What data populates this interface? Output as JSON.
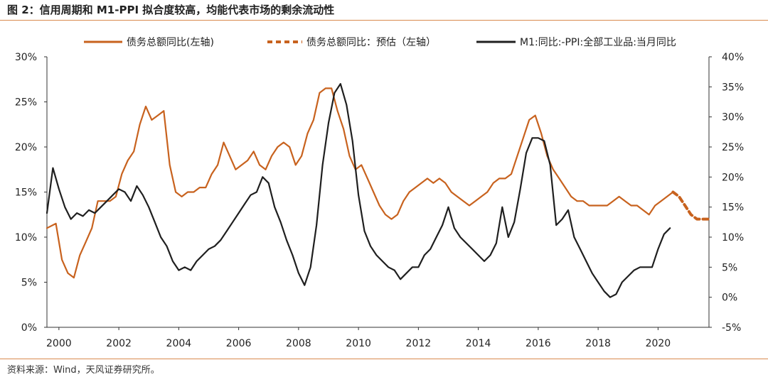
{
  "figure": {
    "title": "图 2：信用周期和 M1-PPI 拟合度较高，均能代表市场的剩余流动性",
    "source": "资料来源：Wind，天风证券研究所。"
  },
  "colors": {
    "debt": "#c8621e",
    "m1ppi": "#1f1f1f",
    "rule": "#d98a4e"
  },
  "chart_data": {
    "type": "line",
    "legend_position": "top",
    "grid": false,
    "x_ticks": [
      "2000",
      "2002",
      "2004",
      "2006",
      "2008",
      "2010",
      "2012",
      "2014",
      "2016",
      "2018",
      "2020"
    ],
    "xlim": [
      1999.6,
      2021.7
    ],
    "ylim_left": [
      0,
      30
    ],
    "ylim_right": [
      -5,
      40
    ],
    "y_ticks_left": [
      "0%",
      "5%",
      "10%",
      "15%",
      "20%",
      "25%",
      "30%"
    ],
    "y_ticks_right": [
      "-5%",
      "0%",
      "5%",
      "10%",
      "15%",
      "20%",
      "25%",
      "30%",
      "35%",
      "40%"
    ],
    "series": [
      {
        "name": "债务总额同比(左轴)",
        "axis": "left",
        "style": "solid",
        "x": [
          1999.6,
          1999.9,
          2000.1,
          2000.3,
          2000.5,
          2000.7,
          2000.9,
          2001.1,
          2001.3,
          2001.5,
          2001.7,
          2001.9,
          2002.1,
          2002.3,
          2002.5,
          2002.7,
          2002.9,
          2003.1,
          2003.3,
          2003.5,
          2003.7,
          2003.9,
          2004.1,
          2004.3,
          2004.5,
          2004.7,
          2004.9,
          2005.1,
          2005.3,
          2005.5,
          2005.7,
          2005.9,
          2006.1,
          2006.3,
          2006.5,
          2006.7,
          2006.9,
          2007.1,
          2007.3,
          2007.5,
          2007.7,
          2007.9,
          2008.1,
          2008.3,
          2008.5,
          2008.7,
          2008.9,
          2009.1,
          2009.3,
          2009.5,
          2009.7,
          2009.9,
          2010.1,
          2010.3,
          2010.5,
          2010.7,
          2010.9,
          2011.1,
          2011.3,
          2011.5,
          2011.7,
          2011.9,
          2012.1,
          2012.3,
          2012.5,
          2012.7,
          2012.9,
          2013.1,
          2013.3,
          2013.5,
          2013.7,
          2013.9,
          2014.1,
          2014.3,
          2014.5,
          2014.7,
          2014.9,
          2015.1,
          2015.3,
          2015.5,
          2015.7,
          2015.9,
          2016.1,
          2016.3,
          2016.5,
          2016.7,
          2016.9,
          2017.1,
          2017.3,
          2017.5,
          2017.7,
          2017.9,
          2018.1,
          2018.3,
          2018.5,
          2018.7,
          2018.9,
          2019.1,
          2019.3,
          2019.5,
          2019.7,
          2019.9,
          2020.1,
          2020.3,
          2020.5
        ],
        "values": [
          11.0,
          11.5,
          7.5,
          6.0,
          5.5,
          8.0,
          9.5,
          11.0,
          14.0,
          14.0,
          14.0,
          14.5,
          17.0,
          18.5,
          19.5,
          22.5,
          24.5,
          23.0,
          23.5,
          24.0,
          18.0,
          15.0,
          14.5,
          15.0,
          15.0,
          15.5,
          15.5,
          17.0,
          18.0,
          20.5,
          19.0,
          17.5,
          18.0,
          18.5,
          19.5,
          18.0,
          17.5,
          19.0,
          20.0,
          20.5,
          20.0,
          18.0,
          19.0,
          21.5,
          23.0,
          26.0,
          26.5,
          26.5,
          24.0,
          22.0,
          19.0,
          17.5,
          18.0,
          16.5,
          15.0,
          13.5,
          12.5,
          12.0,
          12.5,
          14.0,
          15.0,
          15.5,
          16.0,
          16.5,
          16.0,
          16.5,
          16.0,
          15.0,
          14.5,
          14.0,
          13.5,
          14.0,
          14.5,
          15.0,
          16.0,
          16.5,
          16.5,
          17.0,
          19.0,
          21.0,
          23.0,
          23.5,
          21.5,
          19.0,
          17.5,
          16.5,
          15.5,
          14.5,
          14.0,
          14.0,
          13.5,
          13.5,
          13.5,
          13.5,
          14.0,
          14.5,
          14.0,
          13.5,
          13.5,
          13.0,
          12.5,
          13.5,
          14.0,
          14.5,
          15.0
        ]
      },
      {
        "name": "债务总额同比：预估（左轴）",
        "axis": "left",
        "style": "dashed",
        "x": [
          2020.5,
          2020.7,
          2020.9,
          2021.1,
          2021.3,
          2021.5,
          2021.7
        ],
        "values": [
          15.0,
          14.5,
          13.5,
          12.5,
          12.0,
          12.0,
          12.0
        ]
      },
      {
        "name": "M1:同比:-PPI:全部工业品:当月同比",
        "axis": "right",
        "style": "solid",
        "x": [
          1999.6,
          1999.8,
          2000.0,
          2000.2,
          2000.4,
          2000.6,
          2000.8,
          2001.0,
          2001.2,
          2001.4,
          2001.6,
          2001.8,
          2002.0,
          2002.2,
          2002.4,
          2002.6,
          2002.8,
          2003.0,
          2003.2,
          2003.4,
          2003.6,
          2003.8,
          2004.0,
          2004.2,
          2004.4,
          2004.6,
          2004.8,
          2005.0,
          2005.2,
          2005.4,
          2005.6,
          2005.8,
          2006.0,
          2006.2,
          2006.4,
          2006.6,
          2006.8,
          2007.0,
          2007.2,
          2007.4,
          2007.6,
          2007.8,
          2008.0,
          2008.2,
          2008.4,
          2008.6,
          2008.8,
          2009.0,
          2009.2,
          2009.4,
          2009.6,
          2009.8,
          2010.0,
          2010.2,
          2010.4,
          2010.6,
          2010.8,
          2011.0,
          2011.2,
          2011.4,
          2011.6,
          2011.8,
          2012.0,
          2012.2,
          2012.4,
          2012.6,
          2012.8,
          2013.0,
          2013.2,
          2013.4,
          2013.6,
          2013.8,
          2014.0,
          2014.2,
          2014.4,
          2014.6,
          2014.8,
          2015.0,
          2015.2,
          2015.4,
          2015.6,
          2015.8,
          2016.0,
          2016.2,
          2016.4,
          2016.6,
          2016.8,
          2017.0,
          2017.2,
          2017.4,
          2017.6,
          2017.8,
          2018.0,
          2018.2,
          2018.4,
          2018.6,
          2018.8,
          2019.0,
          2019.2,
          2019.4,
          2019.6,
          2019.8,
          2020.0,
          2020.2,
          2020.4
        ],
        "values": [
          14.0,
          21.5,
          18.0,
          15.0,
          13.0,
          14.0,
          13.5,
          14.5,
          14.0,
          15.0,
          16.0,
          17.0,
          18.0,
          17.5,
          16.0,
          18.5,
          17.0,
          15.0,
          12.5,
          10.0,
          8.5,
          6.0,
          4.5,
          5.0,
          4.5,
          6.0,
          7.0,
          8.0,
          8.5,
          9.5,
          11.0,
          12.5,
          14.0,
          15.5,
          17.0,
          17.5,
          20.0,
          19.0,
          15.0,
          12.5,
          9.5,
          7.0,
          4.0,
          2.0,
          5.0,
          12.0,
          22.0,
          29.0,
          34.0,
          35.5,
          32.0,
          26.0,
          17.0,
          11.0,
          8.5,
          7.0,
          6.0,
          5.0,
          4.5,
          3.0,
          4.0,
          5.0,
          5.0,
          7.0,
          8.0,
          10.0,
          12.0,
          15.0,
          11.5,
          10.0,
          9.0,
          8.0,
          7.0,
          6.0,
          7.0,
          9.0,
          15.0,
          10.0,
          12.5,
          18.0,
          24.0,
          26.5,
          26.5,
          26.0,
          22.0,
          12.0,
          13.0,
          14.5,
          10.0,
          8.0,
          6.0,
          4.0,
          2.5,
          1.0,
          0.0,
          0.5,
          2.5,
          3.5,
          4.5,
          5.0,
          5.0,
          5.0,
          8.0,
          10.5,
          11.5
        ]
      }
    ]
  }
}
